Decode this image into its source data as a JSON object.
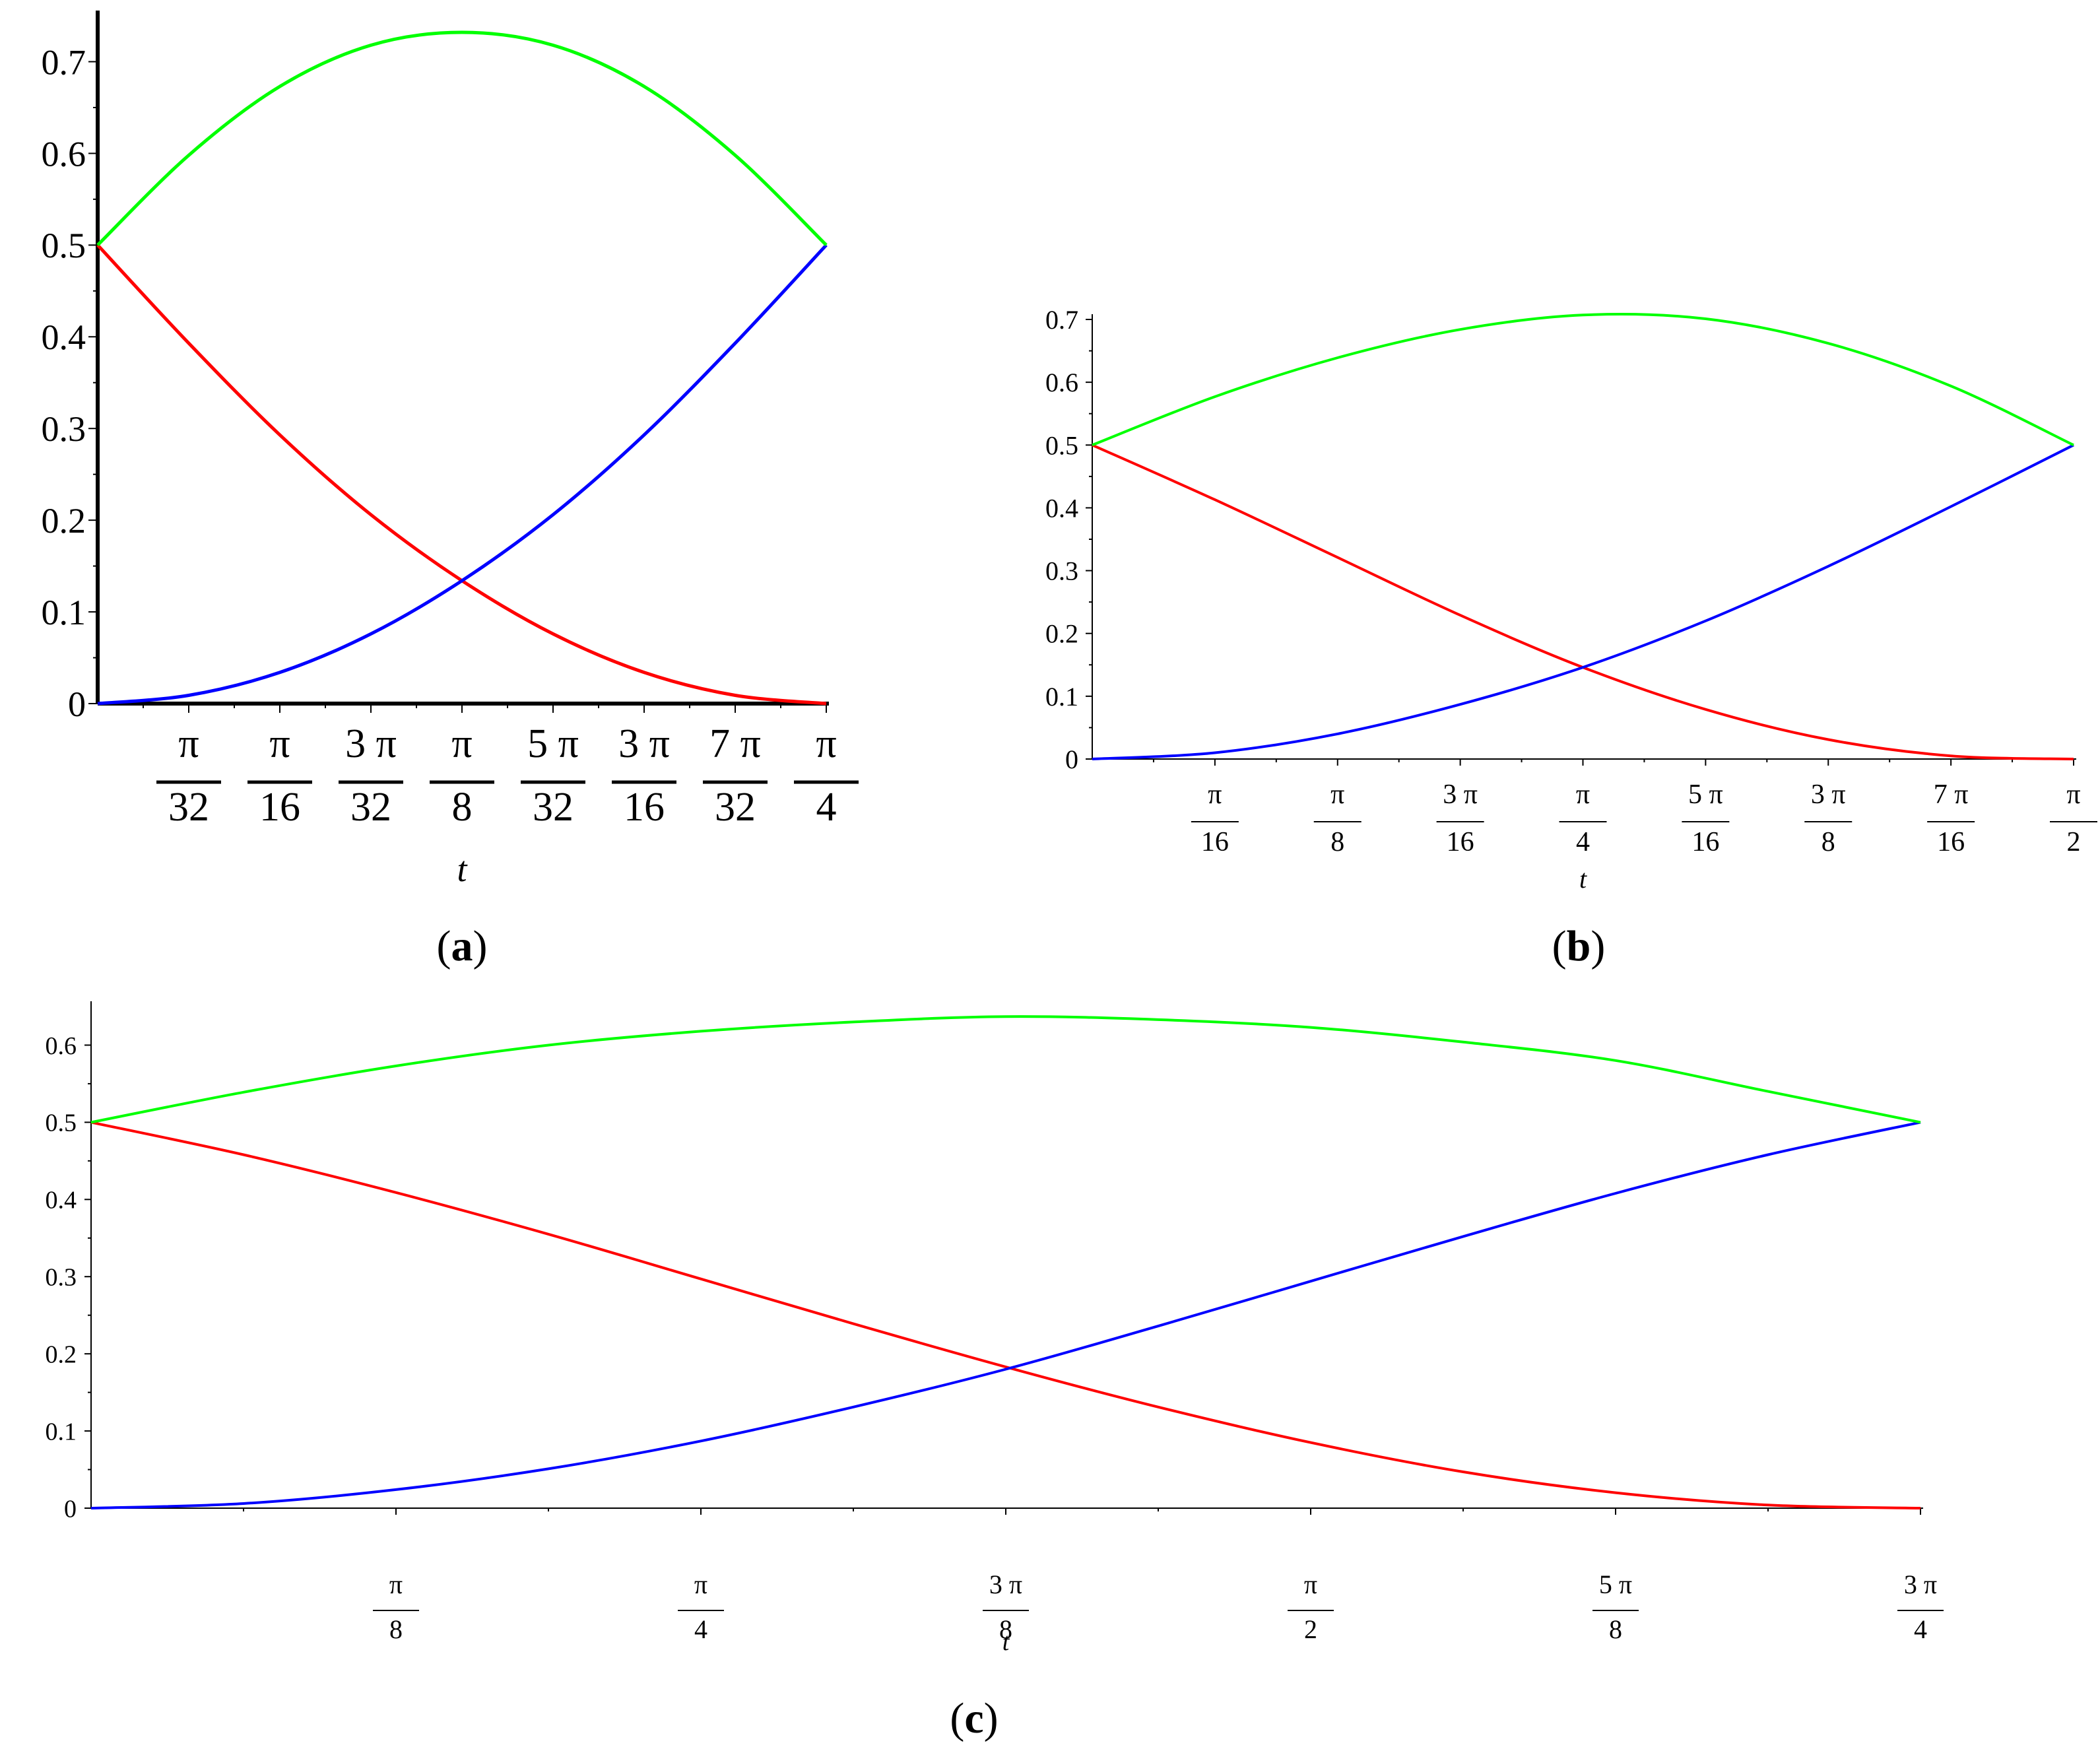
{
  "chart_data": [
    {
      "type": "line",
      "panel_label_open": "(",
      "panel_label_letter": "a",
      "panel_label_close": ")",
      "xlabel": "t",
      "xlim_over_pi": [
        0,
        0.25
      ],
      "ylim": [
        0,
        0.75
      ],
      "y_ticks": [
        "0",
        "0.1",
        "0.2",
        "0.3",
        "0.4",
        "0.5",
        "0.6",
        "0.7"
      ],
      "y_tick_values": [
        0,
        0.1,
        0.2,
        0.3,
        0.4,
        0.5,
        0.6,
        0.7
      ],
      "x_ticks": [
        {
          "num": "π",
          "den": "32",
          "value_over_pi": 0.03125
        },
        {
          "num": "π",
          "den": "16",
          "value_over_pi": 0.0625
        },
        {
          "num": "3 π",
          "den": "32",
          "value_over_pi": 0.09375
        },
        {
          "num": "π",
          "den": "8",
          "value_over_pi": 0.125
        },
        {
          "num": "5 π",
          "den": "32",
          "value_over_pi": 0.15625
        },
        {
          "num": "3 π",
          "den": "16",
          "value_over_pi": 0.1875
        },
        {
          "num": "7 π",
          "den": "32",
          "value_over_pi": 0.21875
        },
        {
          "num": "π",
          "den": "4",
          "value_over_pi": 0.25
        }
      ],
      "series": [
        {
          "color": "#ff0000",
          "x_over_pi": [
            0,
            0.03125,
            0.0625,
            0.09375,
            0.125,
            0.15625,
            0.1875,
            0.21875,
            0.25
          ],
          "values": [
            0.5,
            0.393,
            0.293,
            0.206,
            0.134,
            0.076,
            0.034,
            0.009,
            0.0
          ]
        },
        {
          "color": "#0000ff",
          "x_over_pi": [
            0,
            0.03125,
            0.0625,
            0.09375,
            0.125,
            0.15625,
            0.1875,
            0.21875,
            0.25
          ],
          "values": [
            0.0,
            0.009,
            0.034,
            0.076,
            0.134,
            0.206,
            0.293,
            0.393,
            0.5
          ]
        },
        {
          "color": "#00ff00",
          "x_over_pi": [
            0,
            0.03125,
            0.0625,
            0.09375,
            0.125,
            0.15625,
            0.1875,
            0.21875,
            0.25
          ],
          "values": [
            0.5,
            0.598,
            0.673,
            0.718,
            0.732,
            0.718,
            0.673,
            0.598,
            0.5
          ]
        }
      ]
    },
    {
      "type": "line",
      "panel_label_open": "(",
      "panel_label_letter": "b",
      "panel_label_close": ")",
      "xlabel": "t",
      "xlim_over_pi": [
        0,
        0.5
      ],
      "ylim": [
        0,
        0.7
      ],
      "y_ticks": [
        "0",
        "0.1",
        "0.2",
        "0.3",
        "0.4",
        "0.5",
        "0.6",
        "0.7"
      ],
      "y_tick_values": [
        0,
        0.1,
        0.2,
        0.3,
        0.4,
        0.5,
        0.6,
        0.7
      ],
      "x_ticks": [
        {
          "num": "π",
          "den": "16",
          "value_over_pi": 0.0625
        },
        {
          "num": "π",
          "den": "8",
          "value_over_pi": 0.125
        },
        {
          "num": "3 π",
          "den": "16",
          "value_over_pi": 0.1875
        },
        {
          "num": "π",
          "den": "4",
          "value_over_pi": 0.25
        },
        {
          "num": "5 π",
          "den": "16",
          "value_over_pi": 0.3125
        },
        {
          "num": "3 π",
          "den": "8",
          "value_over_pi": 0.375
        },
        {
          "num": "7 π",
          "den": "16",
          "value_over_pi": 0.4375
        },
        {
          "num": "π",
          "den": "2",
          "value_over_pi": 0.5
        }
      ],
      "series": [
        {
          "color": "#ff0000",
          "x_over_pi": [
            0,
            0.0625,
            0.125,
            0.1875,
            0.25,
            0.3125,
            0.375,
            0.4375,
            0.5
          ],
          "values": [
            0.5,
            0.413,
            0.321,
            0.229,
            0.146,
            0.079,
            0.031,
            0.005,
            0.0
          ]
        },
        {
          "color": "#0000ff",
          "x_over_pi": [
            0,
            0.0625,
            0.125,
            0.1875,
            0.25,
            0.3125,
            0.375,
            0.4375,
            0.5
          ],
          "values": [
            0.0,
            0.01,
            0.04,
            0.087,
            0.146,
            0.22,
            0.307,
            0.402,
            0.5
          ]
        },
        {
          "color": "#00ff00",
          "x_over_pi": [
            0,
            0.0625,
            0.125,
            0.1875,
            0.25,
            0.3125,
            0.375,
            0.4375,
            0.5
          ],
          "values": [
            0.5,
            0.577,
            0.639,
            0.684,
            0.707,
            0.701,
            0.662,
            0.594,
            0.5
          ]
        }
      ]
    },
    {
      "type": "line",
      "panel_label_open": "(",
      "panel_label_letter": "c",
      "panel_label_close": ")",
      "xlabel": "t",
      "xlim_over_pi": [
        0,
        0.75
      ],
      "ylim": [
        0,
        0.65
      ],
      "y_ticks": [
        "0",
        "0.1",
        "0.2",
        "0.3",
        "0.4",
        "0.5",
        "0.6"
      ],
      "y_tick_values": [
        0,
        0.1,
        0.2,
        0.3,
        0.4,
        0.5,
        0.6
      ],
      "x_ticks": [
        {
          "num": "π",
          "den": "8",
          "value_over_pi": 0.125
        },
        {
          "num": "π",
          "den": "4",
          "value_over_pi": 0.25
        },
        {
          "num": "3 π",
          "den": "8",
          "value_over_pi": 0.375
        },
        {
          "num": "π",
          "den": "2",
          "value_over_pi": 0.5
        },
        {
          "num": "5 π",
          "den": "8",
          "value_over_pi": 0.625
        },
        {
          "num": "3 π",
          "den": "4",
          "value_over_pi": 0.75
        }
      ],
      "series": [
        {
          "color": "#ff0000",
          "x_over_pi": [
            0,
            0.0625,
            0.125,
            0.1875,
            0.25,
            0.3125,
            0.375,
            0.4375,
            0.5,
            0.5625,
            0.625,
            0.6875,
            0.75
          ],
          "values": [
            0.5,
            0.458,
            0.409,
            0.355,
            0.297,
            0.239,
            0.183,
            0.131,
            0.085,
            0.047,
            0.02,
            0.004,
            0.0
          ]
        },
        {
          "color": "#0000ff",
          "x_over_pi": [
            0,
            0.0625,
            0.125,
            0.1875,
            0.25,
            0.3125,
            0.375,
            0.4375,
            0.5,
            0.5625,
            0.625,
            0.6875,
            0.75
          ],
          "values": [
            0.0,
            0.006,
            0.024,
            0.051,
            0.087,
            0.131,
            0.18,
            0.236,
            0.294,
            0.352,
            0.408,
            0.458,
            0.5
          ]
        },
        {
          "color": "#00ff00",
          "x_over_pi": [
            0,
            0.0625,
            0.125,
            0.1875,
            0.25,
            0.3125,
            0.375,
            0.4375,
            0.5,
            0.5625,
            0.625,
            0.6875,
            0.75
          ],
          "values": [
            0.5,
            0.539,
            0.573,
            0.6,
            0.618,
            0.63,
            0.637,
            0.633,
            0.623,
            0.604,
            0.58,
            0.54,
            0.5
          ]
        }
      ]
    }
  ]
}
